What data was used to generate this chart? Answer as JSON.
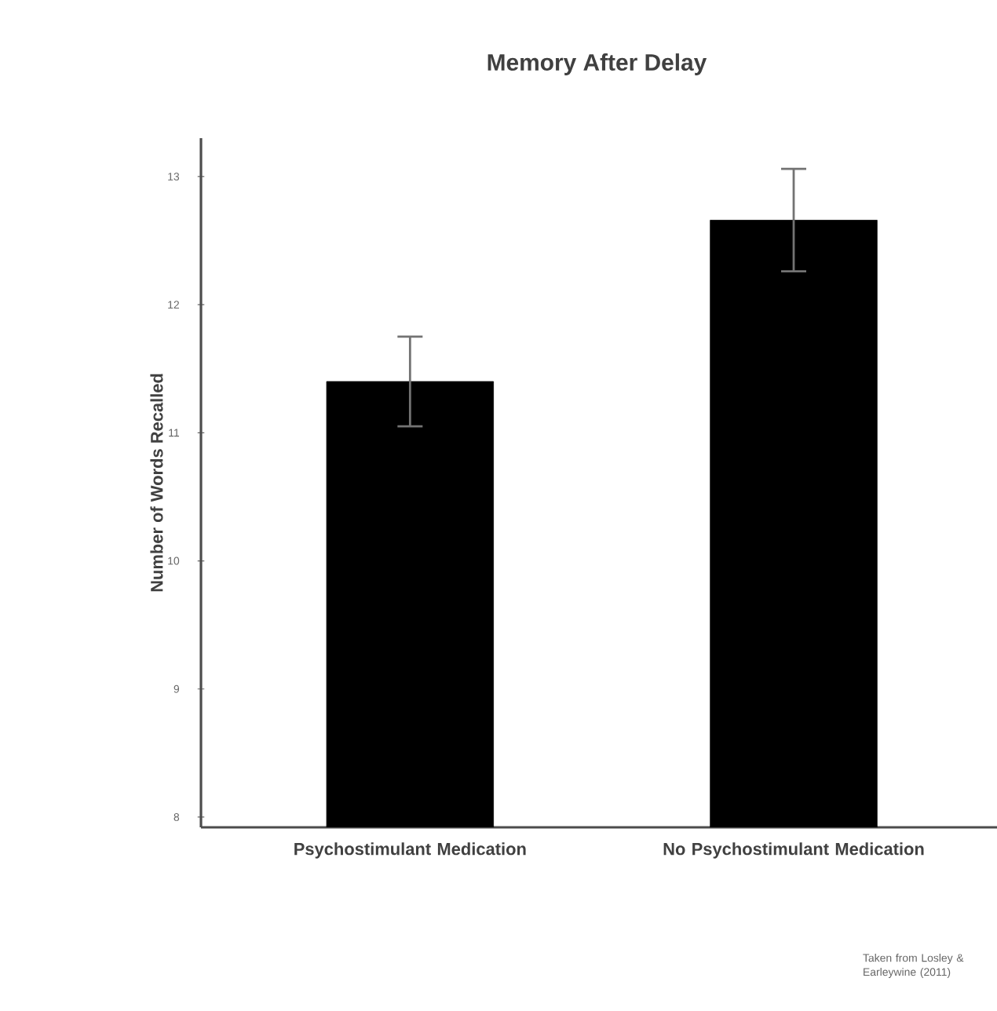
{
  "chart_data": {
    "type": "bar",
    "title": "Memory After Delay",
    "ylabel": "Number of Words Recalled",
    "categories": [
      "Psychostimulant Medication",
      "No Psychostimulant Medication"
    ],
    "values": [
      11.4,
      12.66
    ],
    "errors": [
      0.35,
      0.4
    ],
    "color": "#000000",
    "ylim": [
      7.92,
      13.3
    ],
    "yticks": [
      8,
      9,
      10,
      11,
      12,
      13
    ],
    "annotations": [
      "Taken from Losley & Earleywine (2011)"
    ]
  }
}
